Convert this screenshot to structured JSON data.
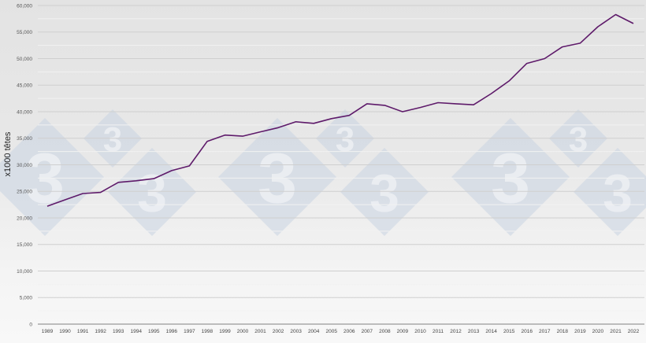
{
  "chart_data": {
    "type": "line",
    "title": "",
    "xlabel": "",
    "ylabel": "x1000 têtes",
    "ylim": [
      0,
      60000
    ],
    "yticks": [
      0,
      5000,
      10000,
      15000,
      20000,
      25000,
      30000,
      35000,
      40000,
      45000,
      50000,
      55000,
      60000
    ],
    "ytick_labels": [
      "0",
      "5,000",
      "10,000",
      "15,000",
      "20,000",
      "25,000",
      "30,000",
      "35,000",
      "40,000",
      "45,000",
      "50,000",
      "55,000",
      "60,000"
    ],
    "grid": true,
    "legend": null,
    "categories": [
      "1989",
      "1990",
      "1991",
      "1992",
      "1993",
      "1994",
      "1995",
      "1996",
      "1997",
      "1998",
      "1999",
      "2000",
      "2001",
      "2002",
      "2003",
      "2004",
      "2005",
      "2006",
      "2007",
      "2008",
      "2009",
      "2010",
      "2011",
      "2012",
      "2013",
      "2014",
      "2015",
      "2016",
      "2017",
      "2018",
      "2019",
      "2020",
      "2021",
      "2022"
    ],
    "series": [
      {
        "name": "x1000 têtes",
        "color": "#5e1a6a",
        "values": [
          22200,
          23400,
          24600,
          24800,
          26700,
          27000,
          27400,
          28900,
          29800,
          34400,
          35600,
          35400,
          36200,
          37000,
          38100,
          37800,
          38700,
          39300,
          41500,
          41200,
          40000,
          40800,
          41700,
          41500,
          41300,
          43400,
          45800,
          49100,
          50000,
          52200,
          52900,
          56000,
          58300,
          56600
        ]
      }
    ],
    "watermark": {
      "glyph": "3",
      "count": 3
    }
  }
}
